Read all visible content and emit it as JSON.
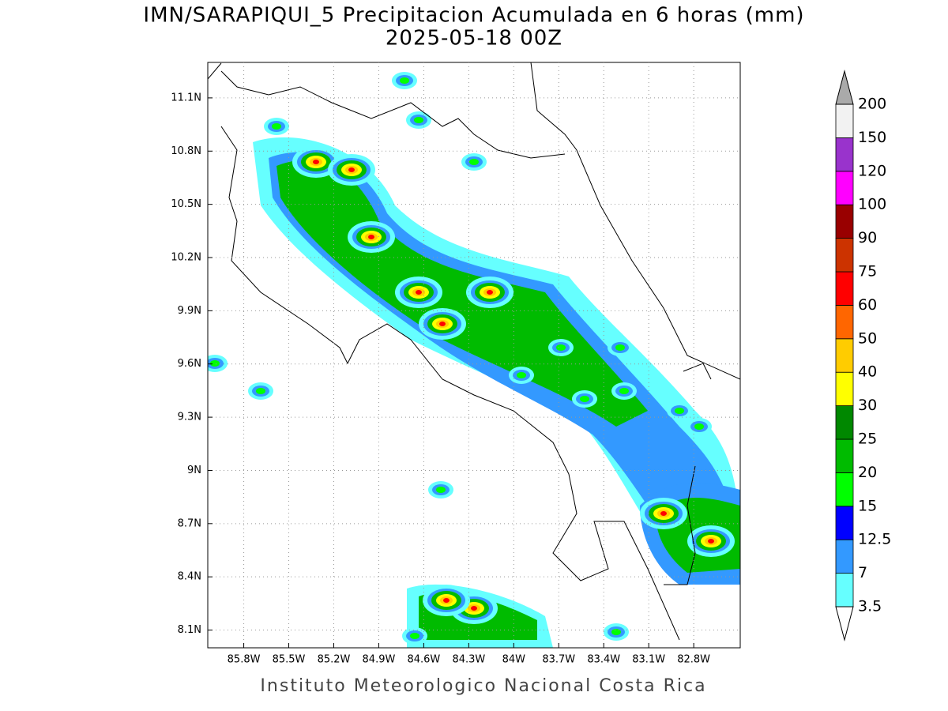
{
  "map": {
    "title": "IMN/SARAPIQUI_5 Precipitacion Acumulada en 6 horas (mm)",
    "subtitle": "2025-05-18 00Z",
    "footer": "Instituto Meteorologico Nacional Costa Rica",
    "xlim": [
      -86.04,
      -82.49
    ],
    "ylim": [
      8.0,
      11.3
    ],
    "grid": true,
    "xticks": [
      {
        "value": -85.8,
        "label": "85.8W"
      },
      {
        "value": -85.5,
        "label": "85.5W"
      },
      {
        "value": -85.2,
        "label": "85.2W"
      },
      {
        "value": -84.9,
        "label": "84.9W"
      },
      {
        "value": -84.6,
        "label": "84.6W"
      },
      {
        "value": -84.3,
        "label": "84.3W"
      },
      {
        "value": -84.0,
        "label": "84W"
      },
      {
        "value": -83.7,
        "label": "83.7W"
      },
      {
        "value": -83.4,
        "label": "83.4W"
      },
      {
        "value": -83.1,
        "label": "83.1W"
      },
      {
        "value": -82.8,
        "label": "82.8W"
      }
    ],
    "yticks": [
      {
        "value": 8.1,
        "label": "8.1N"
      },
      {
        "value": 8.4,
        "label": "8.4N"
      },
      {
        "value": 8.7,
        "label": "8.7N"
      },
      {
        "value": 9.0,
        "label": "9N"
      },
      {
        "value": 9.3,
        "label": "9.3N"
      },
      {
        "value": 9.6,
        "label": "9.6N"
      },
      {
        "value": 9.9,
        "label": "9.9N"
      },
      {
        "value": 10.2,
        "label": "10.2N"
      },
      {
        "value": 10.5,
        "label": "10.5N"
      },
      {
        "value": 10.8,
        "label": "10.8N"
      },
      {
        "value": 11.1,
        "label": "11.1N"
      }
    ],
    "colorbar": {
      "levels": [
        3.5,
        7,
        12.5,
        15,
        20,
        25,
        30,
        40,
        50,
        60,
        75,
        90,
        100,
        120,
        150,
        200
      ],
      "colors": [
        "#66ffff",
        "#3399ff",
        "#0000ff",
        "#00ff00",
        "#00bb00",
        "#008800",
        "#ffff00",
        "#ffcc00",
        "#ff6600",
        "#ff0000",
        "#cc3300",
        "#990000",
        "#ff00ff",
        "#9933cc",
        "#f2f2f2"
      ],
      "under_color": "#ffffff",
      "over_color": "#aaaaaa"
    }
  }
}
